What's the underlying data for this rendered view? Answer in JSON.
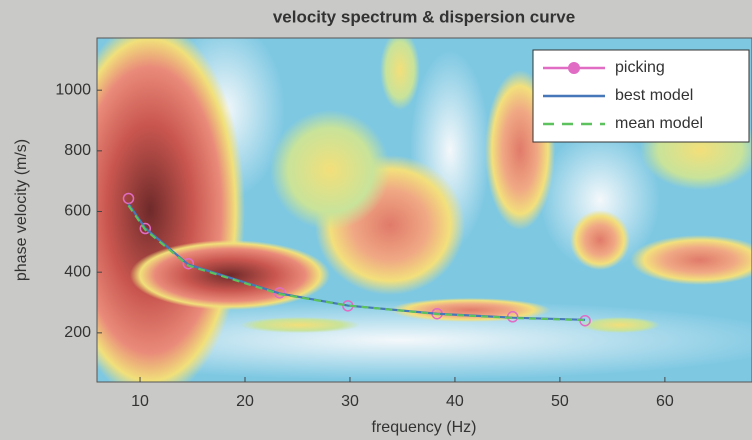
{
  "chart_data": {
    "type": "line",
    "title": "velocity spectrum & dispersion curve",
    "xlabel": "frequency (Hz)",
    "ylabel": "phase velocity (m/s)",
    "x": [
      8.9,
      10.5,
      14.6,
      23.3,
      29.8,
      38.3,
      45.5,
      52.4
    ],
    "series": [
      {
        "name": "picking",
        "color": "#e06cc4",
        "marker": "o",
        "linestyle": "none",
        "values": [
          643,
          544,
          428,
          332,
          289,
          263,
          253,
          240
        ]
      },
      {
        "name": "best model",
        "color": "#4677b8",
        "linestyle": "solid",
        "values": [
          625,
          545,
          425,
          330,
          290,
          263,
          250,
          243
        ]
      },
      {
        "name": "mean model",
        "color": "#5cc25e",
        "linestyle": "dashed",
        "values": [
          620,
          540,
          422,
          328,
          290,
          262,
          249,
          242
        ]
      }
    ],
    "xlim": [
      5.9,
      68.3
    ],
    "xticks": [
      10,
      20,
      30,
      40,
      50,
      60
    ],
    "ylim": [
      38,
      1172
    ],
    "yticks": [
      200,
      400,
      600,
      800,
      1000
    ],
    "legend": "upper right"
  }
}
